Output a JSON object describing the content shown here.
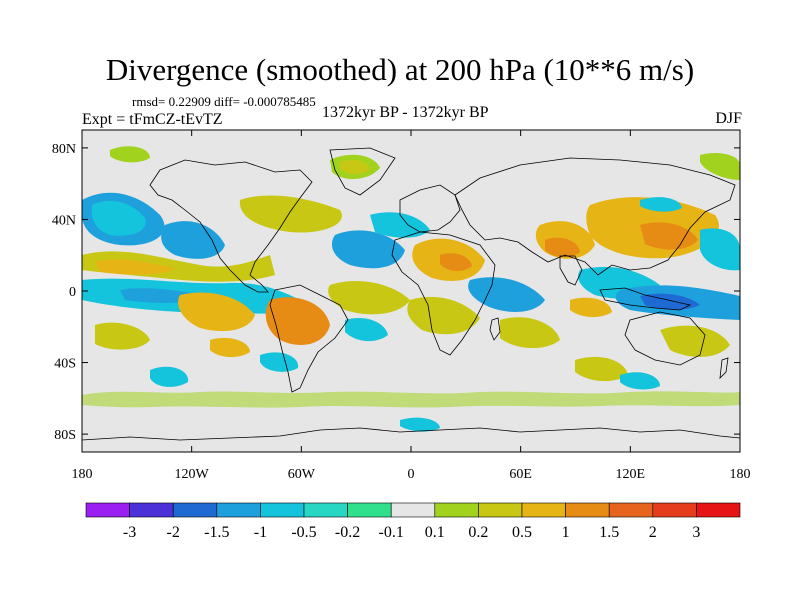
{
  "title": "Divergence (smoothed) at 200 hPa (10**6 m/s)",
  "stats": "rmsd= 0.22909 diff= -0.000785485",
  "experiment": "Expt = tFmCZ-tEvTZ",
  "period": "1372kyr BP - 1372kyr BP",
  "season": "DJF",
  "lat_ticks": [
    {
      "label": "80N",
      "lat": 80
    },
    {
      "label": "40N",
      "lat": 40
    },
    {
      "label": "0",
      "lat": 0
    },
    {
      "label": "40S",
      "lat": -40
    },
    {
      "label": "80S",
      "lat": -80
    }
  ],
  "lon_ticks": [
    {
      "label": "180",
      "lon": -180
    },
    {
      "label": "120W",
      "lon": -120
    },
    {
      "label": "60W",
      "lon": -60
    },
    {
      "label": "0",
      "lon": 0
    },
    {
      "label": "60E",
      "lon": 60
    },
    {
      "label": "120E",
      "lon": 120
    },
    {
      "label": "180",
      "lon": 180
    }
  ],
  "colorbar": {
    "labels": [
      "-3",
      "-2",
      "-1.5",
      "-1",
      "-0.5",
      "-0.2",
      "-0.1",
      "0.1",
      "0.2",
      "0.5",
      "1",
      "1.5",
      "2",
      "3"
    ],
    "colors": [
      "#9b1ff0",
      "#4d31d8",
      "#1e69d2",
      "#1ea0dc",
      "#14c3dc",
      "#28d7c3",
      "#30e08c",
      "#e6e6e6",
      "#a0d21e",
      "#c8c814",
      "#e6b414",
      "#e68c14",
      "#e6641e",
      "#e63c1e",
      "#e61414"
    ]
  },
  "map_background": "#e6e6e6"
}
